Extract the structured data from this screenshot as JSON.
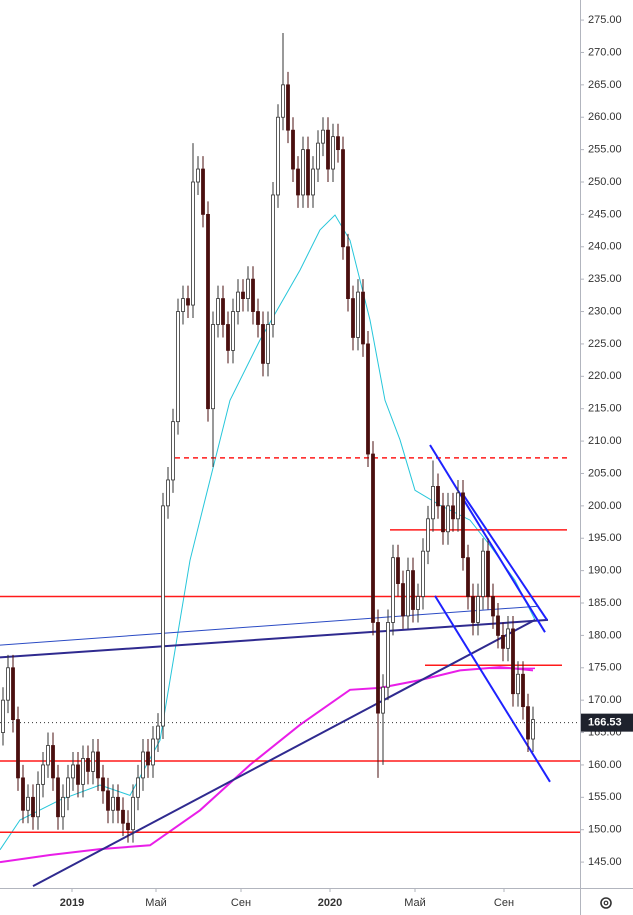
{
  "chart_data": {
    "type": "candlestick",
    "open": [
      165,
      170,
      175,
      167,
      158,
      153,
      155,
      152,
      157,
      160,
      163,
      158,
      152,
      155,
      158,
      160,
      157,
      161,
      159,
      162,
      158,
      156,
      153,
      155,
      153,
      151,
      150,
      155,
      158,
      162,
      160,
      164,
      166,
      200,
      204,
      213,
      230,
      232,
      231,
      250,
      252,
      245,
      215,
      228,
      232,
      228,
      224,
      230,
      233,
      232,
      235,
      230,
      228,
      222,
      228,
      248,
      260,
      265,
      258,
      252,
      248,
      255,
      248,
      252,
      256,
      258,
      252,
      257,
      255,
      240,
      232,
      226,
      233,
      225,
      208,
      182,
      168,
      172,
      182,
      192,
      188,
      183,
      190,
      184,
      186,
      193,
      198,
      203,
      200,
      196,
      200,
      198,
      202,
      192,
      186,
      182,
      186,
      193,
      186,
      183,
      180,
      178,
      181,
      171,
      174,
      169,
      164
    ],
    "high": [
      172,
      177,
      177,
      169,
      160,
      157,
      157,
      159,
      162,
      165,
      165,
      160,
      157,
      160,
      162,
      162,
      163,
      163,
      164,
      164,
      160,
      158,
      157,
      157,
      155,
      153,
      157,
      160,
      164,
      164,
      166,
      168,
      202,
      206,
      215,
      232,
      234,
      234,
      256,
      254,
      254,
      247,
      230,
      234,
      234,
      230,
      232,
      235,
      235,
      237,
      237,
      232,
      230,
      230,
      250,
      262,
      273,
      267,
      260,
      254,
      257,
      257,
      254,
      258,
      260,
      260,
      259,
      259,
      257,
      242,
      234,
      235,
      235,
      227,
      210,
      184,
      174,
      184,
      194,
      194,
      190,
      192,
      192,
      188,
      195,
      200,
      207,
      205,
      202,
      202,
      202,
      204,
      204,
      194,
      188,
      188,
      195,
      195,
      188,
      185,
      182,
      183,
      183,
      176,
      176,
      171,
      169
    ],
    "low": [
      163,
      168,
      165,
      156,
      151,
      151,
      150,
      150,
      155,
      158,
      156,
      150,
      150,
      153,
      156,
      155,
      155,
      157,
      157,
      156,
      154,
      151,
      151,
      151,
      149,
      148,
      148,
      153,
      156,
      158,
      158,
      162,
      164,
      198,
      202,
      211,
      228,
      229,
      229,
      248,
      243,
      213,
      206,
      226,
      226,
      222,
      222,
      228,
      230,
      230,
      228,
      226,
      220,
      220,
      226,
      246,
      258,
      256,
      250,
      246,
      246,
      246,
      246,
      250,
      254,
      250,
      250,
      253,
      238,
      230,
      224,
      224,
      223,
      206,
      180,
      158,
      160,
      170,
      180,
      186,
      181,
      181,
      182,
      182,
      184,
      191,
      196,
      198,
      194,
      194,
      196,
      196,
      190,
      184,
      180,
      180,
      184,
      184,
      181,
      178,
      176,
      176,
      169,
      169,
      167,
      162,
      162
    ],
    "close": [
      170,
      175,
      167,
      158,
      153,
      155,
      152,
      157,
      160,
      163,
      158,
      152,
      155,
      158,
      160,
      157,
      161,
      159,
      162,
      158,
      156,
      153,
      155,
      153,
      151,
      150,
      155,
      158,
      162,
      160,
      164,
      166,
      200,
      204,
      213,
      230,
      232,
      231,
      250,
      252,
      245,
      215,
      228,
      232,
      228,
      224,
      230,
      233,
      232,
      235,
      230,
      228,
      222,
      228,
      248,
      260,
      265,
      258,
      252,
      248,
      255,
      248,
      252,
      256,
      258,
      252,
      257,
      255,
      240,
      232,
      226,
      233,
      225,
      208,
      182,
      168,
      172,
      182,
      192,
      188,
      183,
      190,
      184,
      186,
      193,
      198,
      203,
      200,
      196,
      200,
      198,
      202,
      192,
      186,
      182,
      186,
      193,
      186,
      183,
      180,
      178,
      181,
      171,
      174,
      169,
      164,
      167
    ],
    "up_color": "#ffffff",
    "down_color": "#4a0f0f",
    "xlim": [
      -0.6,
      115.4
    ],
    "ylim": [
      141,
      278.1
    ],
    "yticks": [
      {
        "value": 145,
        "label": "145.00"
      },
      {
        "value": 150,
        "label": "150.00"
      },
      {
        "value": 155,
        "label": "155.00"
      },
      {
        "value": 160,
        "label": "160.00"
      },
      {
        "value": 165,
        "label": "165.00"
      },
      {
        "value": 170,
        "label": "170.00"
      },
      {
        "value": 175,
        "label": "175.00"
      },
      {
        "value": 180,
        "label": "180.00"
      },
      {
        "value": 185,
        "label": "185.00"
      },
      {
        "value": 190,
        "label": "190.00"
      },
      {
        "value": 195,
        "label": "195.00"
      },
      {
        "value": 200,
        "label": "200.00"
      },
      {
        "value": 205,
        "label": "205.00"
      },
      {
        "value": 210,
        "label": "210.00"
      },
      {
        "value": 215,
        "label": "215.00"
      },
      {
        "value": 220,
        "label": "220.00"
      },
      {
        "value": 225,
        "label": "225.00"
      },
      {
        "value": 230,
        "label": "230.00"
      },
      {
        "value": 235,
        "label": "235.00"
      },
      {
        "value": 240,
        "label": "240.00"
      },
      {
        "value": 245,
        "label": "245.00"
      },
      {
        "value": 250,
        "label": "250.00"
      },
      {
        "value": 255,
        "label": "255.00"
      },
      {
        "value": 260,
        "label": "260.00"
      },
      {
        "value": 265,
        "label": "265.00"
      },
      {
        "value": 270,
        "label": "270.00"
      },
      {
        "value": 275,
        "label": "275.00"
      }
    ],
    "xticks": [
      {
        "value": 13.8,
        "label": "2019"
      },
      {
        "value": 30.6,
        "label": "Май"
      },
      {
        "value": 47.6,
        "label": "Сен"
      },
      {
        "value": 65.4,
        "label": "2020"
      },
      {
        "value": 82.4,
        "label": "Май"
      },
      {
        "value": 100.2,
        "label": "Сен"
      }
    ],
    "overlays": [
      {
        "color": "#26c6da",
        "width": 1,
        "x": [
          -0.6,
          3.4,
          11.4,
          19.4,
          25.4,
          31.4,
          37.4,
          40.4,
          45.4,
          51.4,
          59.4,
          63.4,
          66.4,
          69.4,
          73.4,
          76.4,
          79.4,
          82.4,
          87.4,
          93.4,
          97.4,
          102.4,
          106.4
        ],
        "values": [
          146.9,
          151.5,
          154.6,
          156.9,
          155.3,
          163.8,
          191.6,
          200.9,
          216.3,
          225.6,
          236.4,
          242.6,
          244.9,
          241,
          228.7,
          216.3,
          210.2,
          202.4,
          200.1,
          197.8,
          193.9,
          188.5,
          182.4
        ]
      },
      {
        "color": "#e91ee8",
        "width": 2,
        "x": [
          -0.6,
          9.4,
          19.4,
          29.4,
          39.4,
          49.4,
          59.4,
          69.4,
          75.4,
          83.4,
          91.4,
          99.4,
          106
        ],
        "values": [
          145,
          146.1,
          147,
          147.6,
          153,
          160,
          166.2,
          171.6,
          171.9,
          173.1,
          174.6,
          175.1,
          174.6
        ]
      }
    ],
    "levels": [
      {
        "value": 186,
        "color": "#ff1a1a",
        "x": [
          -0.6,
          115.4
        ],
        "dashed": false
      },
      {
        "value": 160.6,
        "color": "#ff1a1a",
        "x": [
          -0.6,
          115.4
        ],
        "dashed": false
      },
      {
        "value": 149.6,
        "color": "#ff1a1a",
        "x": [
          -0.6,
          115.4
        ],
        "dashed": false
      },
      {
        "value": 196.3,
        "color": "#ff1a1a",
        "x": [
          77.4,
          112.8
        ],
        "dashed": false
      },
      {
        "value": 175.4,
        "color": "#ff1a1a",
        "x": [
          84.4,
          111.8
        ],
        "dashed": false
      },
      {
        "value": 207.4,
        "color": "#ff1a1a",
        "x": [
          34.4,
          112.8
        ],
        "dashed": true
      },
      {
        "value": 174.9,
        "color": "#e91ee8",
        "x": [
          97.4,
          106.4
        ],
        "dashed": false
      }
    ],
    "trendlines": [
      {
        "color": "#2f2a8f",
        "width": 2,
        "x": [
          -0.6,
          109
        ],
        "values": [
          176.6,
          182.4
        ]
      },
      {
        "color": "#2b4bc4",
        "width": 1,
        "x": [
          -0.6,
          107
        ],
        "values": [
          178.5,
          184.5
        ]
      },
      {
        "color": "#2f2a8f",
        "width": 2,
        "x": [
          6,
          106.4
        ],
        "values": [
          141.3,
          182.4
        ]
      },
      {
        "color": "#1e22ff",
        "width": 2,
        "x": [
          85.4,
          108.4
        ],
        "values": [
          209.4,
          180.5
        ]
      },
      {
        "color": "#1e22ff",
        "width": 2,
        "x": [
          91.8,
          108.8
        ],
        "values": [
          202,
          182.4
        ]
      },
      {
        "color": "#1e22ff",
        "width": 2,
        "x": [
          86.4,
          109.4
        ],
        "values": [
          186.1,
          157.4
        ]
      }
    ],
    "last_price": {
      "value": 166.53,
      "label": "166.53"
    }
  }
}
